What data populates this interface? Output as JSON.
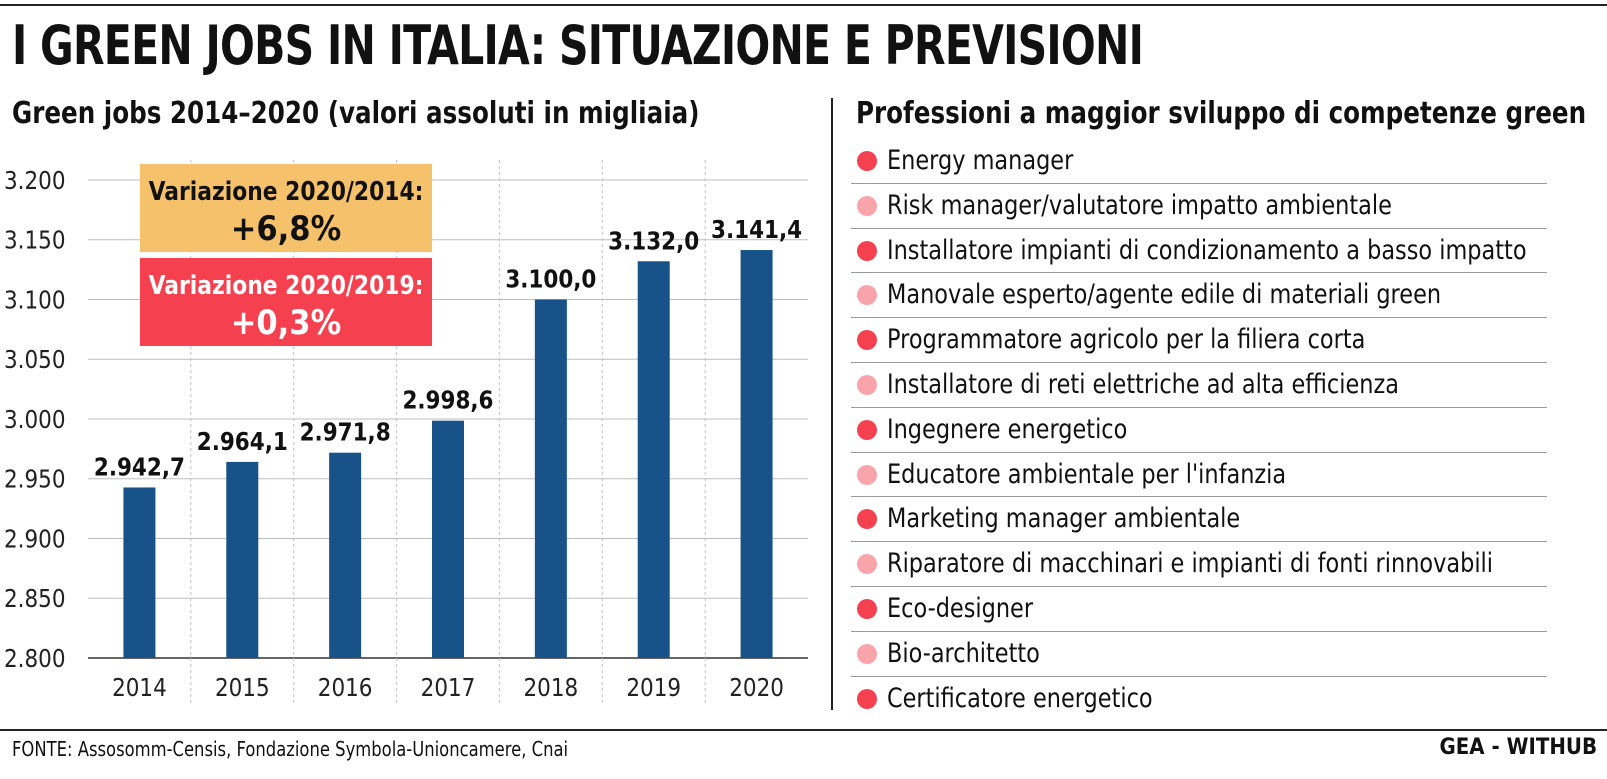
{
  "title": "I GREEN JOBS IN ITALIA: SITUAZIONE E PREVISIONI",
  "colors": {
    "bar": "#175389",
    "box_orange": "#f5c26b",
    "box_red": "#f5414f",
    "dot_dark": "#f5414f",
    "dot_light": "#f9a4aa"
  },
  "chart_data": {
    "type": "bar",
    "title": "Green jobs 2014–2020 (valori assoluti in migliaia)",
    "categories": [
      "2014",
      "2015",
      "2016",
      "2017",
      "2018",
      "2019",
      "2020"
    ],
    "values": [
      2942.7,
      2964.1,
      2971.8,
      2998.6,
      3100.0,
      3132.0,
      3141.4
    ],
    "value_labels": [
      "2.942,7",
      "2.964,1",
      "2.971,8",
      "2.998,6",
      "3.100,0",
      "3.132,0",
      "3.141,4"
    ],
    "ylim": [
      2800,
      3200
    ],
    "yticks": [
      2800,
      2850,
      2900,
      2950,
      3000,
      3050,
      3100,
      3150,
      3200
    ],
    "ytick_labels": [
      "2.800",
      "2.850",
      "2.900",
      "2.950",
      "3.000",
      "3.050",
      "3.100",
      "3.150",
      "3.200"
    ],
    "grid": {
      "horizontal": true,
      "vertical": true
    },
    "annotations": [
      {
        "label": "Variazione 2020/2014:",
        "value": "+6,8%"
      },
      {
        "label": "Variazione 2020/2019:",
        "value": "+0,3%"
      }
    ]
  },
  "professions": {
    "title": "Professioni a maggior sviluppo di competenze green",
    "items": [
      "Energy manager",
      "Risk manager/valutatore impatto ambientale",
      "Installatore impianti di condizionamento a basso impatto",
      "Manovale esperto/agente edile di materiali green",
      "Programmatore agricolo per la filiera corta",
      "Installatore di reti elettriche ad alta efficienza",
      "Ingegnere energetico",
      "Educatore ambientale per l'infanzia",
      "Marketing manager ambientale",
      "Riparatore di macchinari e impianti di fonti rinnovabili",
      "Eco-designer",
      "Bio-architetto",
      "Certificatore energetico"
    ]
  },
  "footer": {
    "source": "FONTE: Assosomm-Censis, Fondazione Symbola-Unioncamere, Cnai",
    "credit": "GEA - WITHUB"
  }
}
